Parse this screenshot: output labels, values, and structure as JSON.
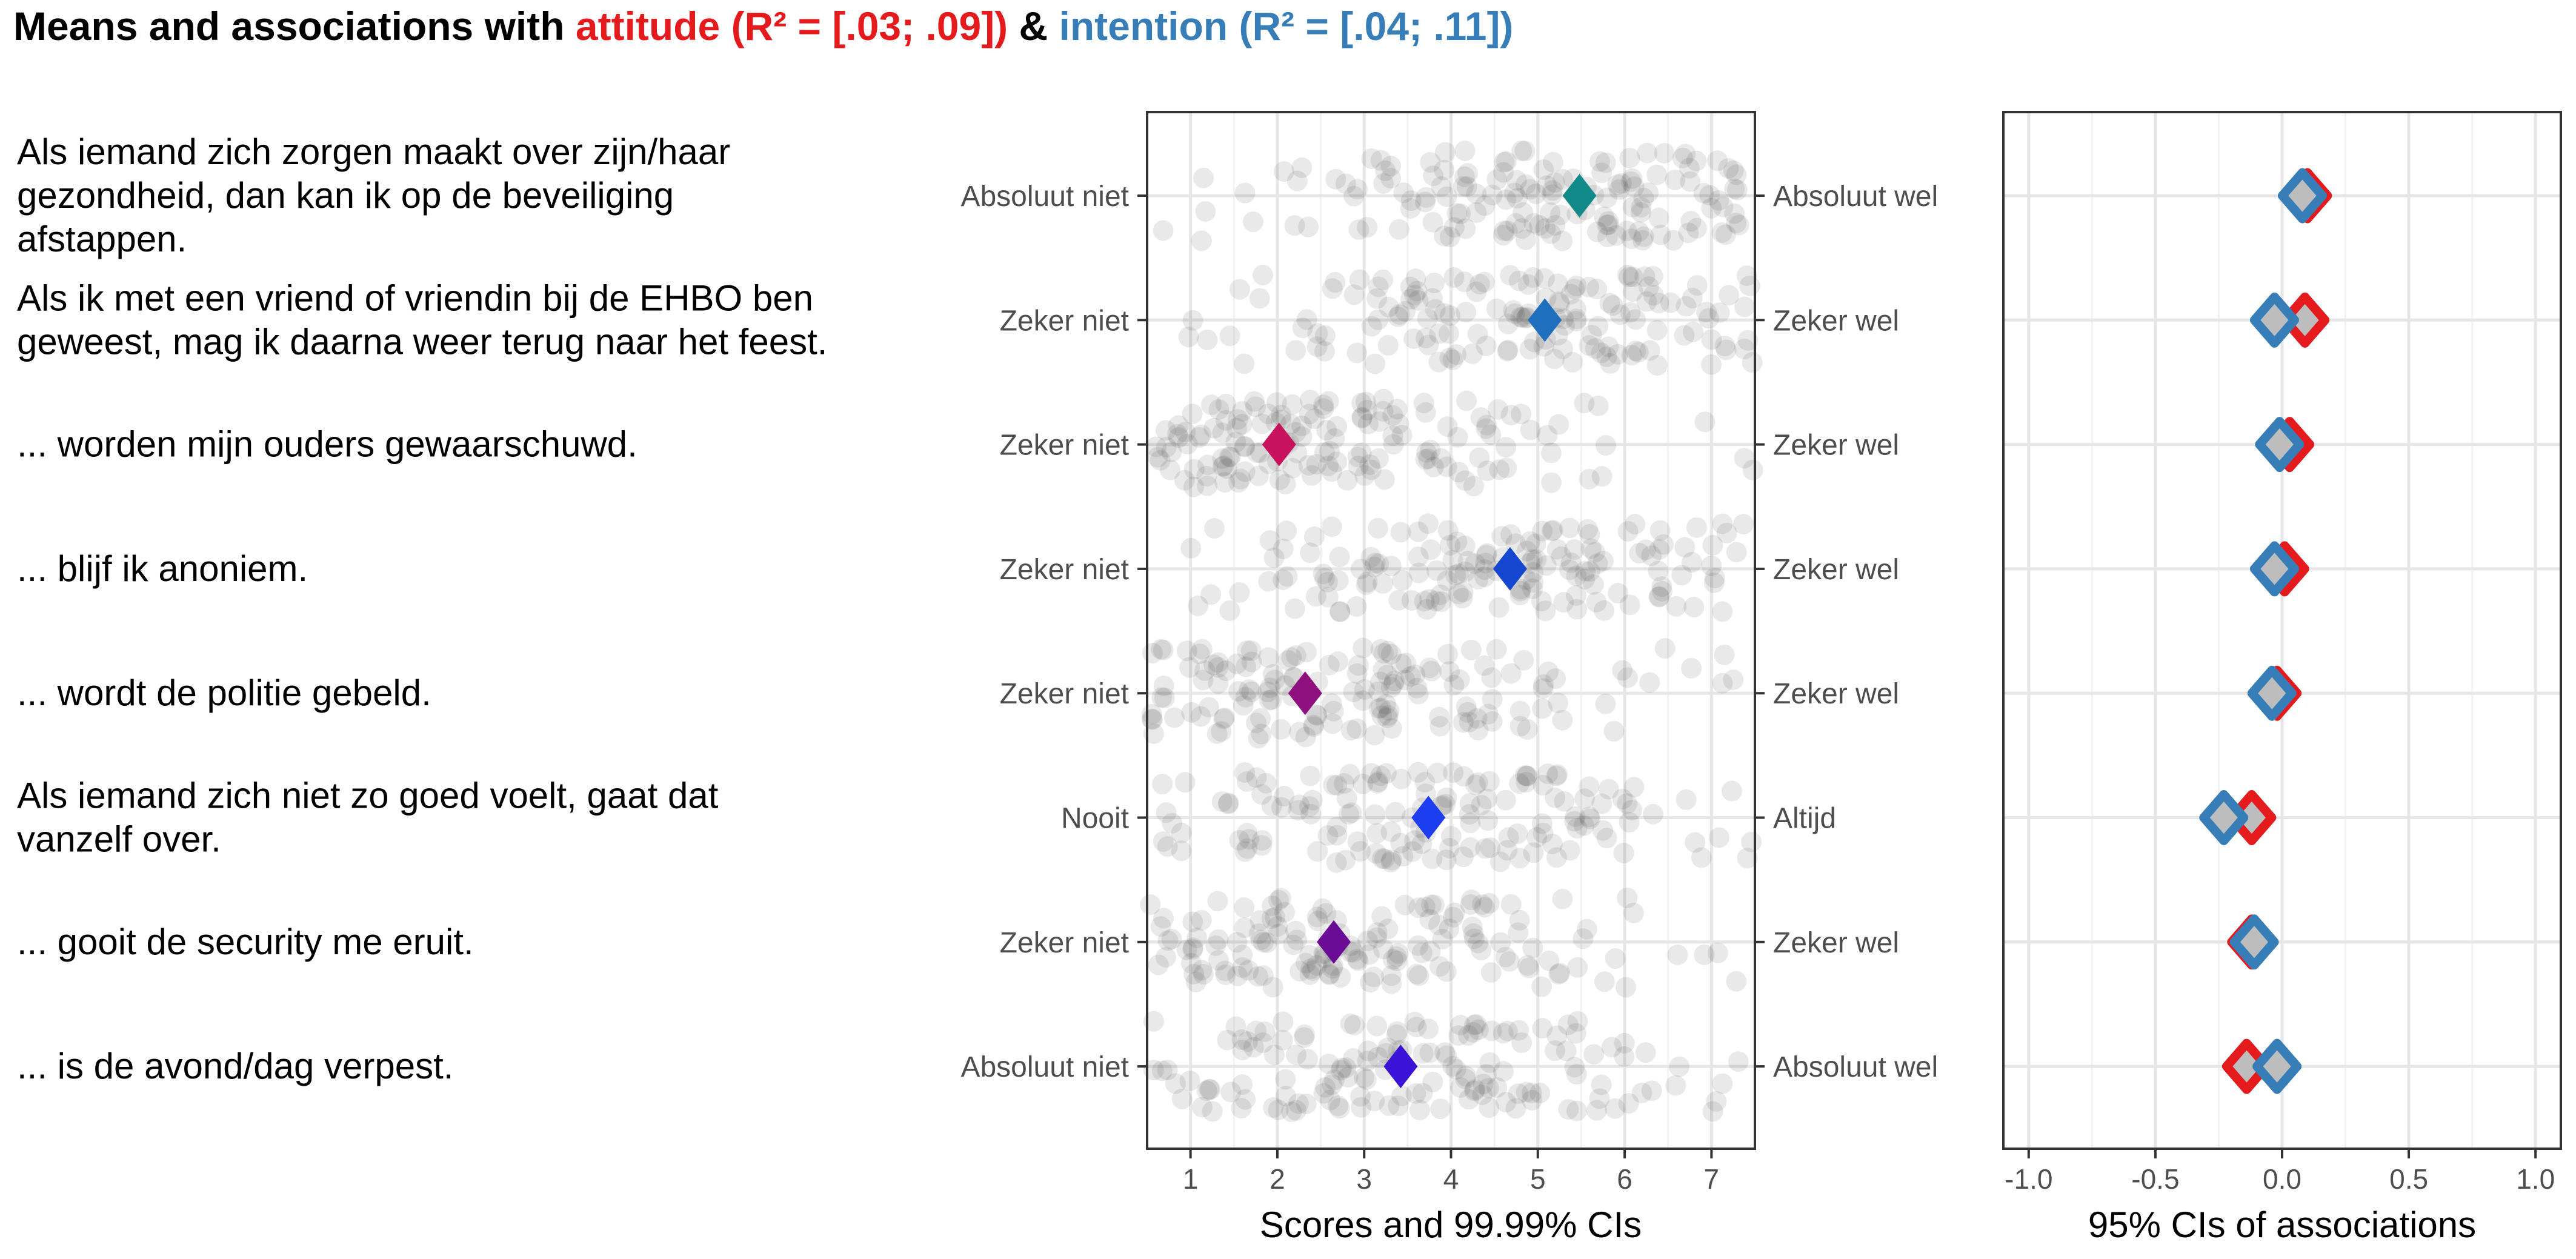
{
  "chart_data": {
    "type": "scatter",
    "title": {
      "prefix": "Means and associations with ",
      "attitude_word": "attitude",
      "attitude_r2": "(R² = [.03; .09])",
      "amp": " & ",
      "intention_word": "intention",
      "intention_r2": "(R² = [.04; .11])"
    },
    "items": [
      {
        "text": [
          "Als iemand zich zorgen maakt over zijn/haar",
          "gezondheid, dan kan ik op de beveiliging",
          "afstappen."
        ],
        "left_anchor": "Absoluut niet",
        "right_anchor": "Absoluut wel",
        "mean": 5.48,
        "mean_color": "#138A8A",
        "att": 0.1,
        "int": 0.08
      },
      {
        "text": [
          "Als ik met een vriend of vriendin bij de EHBO ben",
          "geweest, mag ik daarna weer terug naar het feest."
        ],
        "left_anchor": "Zeker niet",
        "right_anchor": "Zeker wel",
        "mean": 5.08,
        "mean_color": "#1F6FBF",
        "att": 0.09,
        "int": -0.03
      },
      {
        "text": [
          "... worden mijn ouders gewaarschuwd."
        ],
        "left_anchor": "Zeker niet",
        "right_anchor": "Zeker wel",
        "mean": 2.02,
        "mean_color": "#C8125E",
        "att": 0.03,
        "int": -0.01
      },
      {
        "text": [
          "... blijf ik anoniem."
        ],
        "left_anchor": "Zeker niet",
        "right_anchor": "Zeker wel",
        "mean": 4.68,
        "mean_color": "#1547D1",
        "att": 0.01,
        "int": -0.03
      },
      {
        "text": [
          "... wordt de politie gebeld."
        ],
        "left_anchor": "Zeker niet",
        "right_anchor": "Zeker wel",
        "mean": 2.32,
        "mean_color": "#8E0F7E",
        "att": -0.02,
        "int": -0.04
      },
      {
        "text": [
          "Als iemand zich niet zo goed voelt, gaat dat",
          "vanzelf over."
        ],
        "left_anchor": "Nooit",
        "right_anchor": "Altijd",
        "mean": 3.74,
        "mean_color": "#1C3DF0",
        "att": -0.12,
        "int": -0.23
      },
      {
        "text": [
          "... gooit de security me eruit."
        ],
        "left_anchor": "Zeker niet",
        "right_anchor": "Zeker wel",
        "mean": 2.65,
        "mean_color": "#6A0C96",
        "att": -0.12,
        "int": -0.11
      },
      {
        "text": [
          "... is de avond/dag verpest."
        ],
        "left_anchor": "Absoluut niet",
        "right_anchor": "Absoluut wel",
        "mean": 3.42,
        "mean_color": "#3A12D8",
        "att": -0.14,
        "int": -0.02
      }
    ],
    "score_axis": {
      "label": "Scores and 99.99% CIs",
      "ticks": [
        1,
        2,
        3,
        4,
        5,
        6,
        7
      ],
      "xlim": [
        0.5,
        7.5
      ]
    },
    "assoc_axis": {
      "label": "95% CIs of associations",
      "ticks": [
        -1.0,
        -0.5,
        0.0,
        0.5,
        1.0
      ],
      "tick_labels": [
        "-1.0",
        "-0.5",
        "0.0",
        "0.5",
        "1.0"
      ],
      "xlim": [
        -1.1,
        1.1
      ]
    },
    "series": [
      {
        "name": "attitude",
        "color": "#E41A1C"
      },
      {
        "name": "intention",
        "color": "#377EB8"
      }
    ],
    "grid": true
  }
}
